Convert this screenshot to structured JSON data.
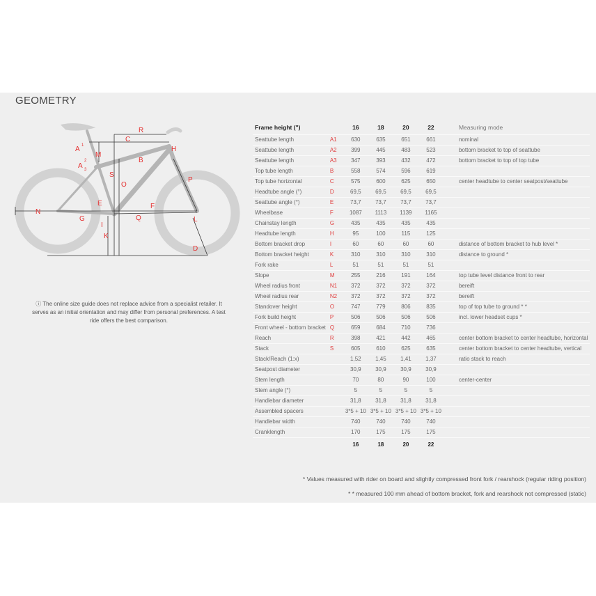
{
  "title": "GEOMETRY",
  "note": "The online size guide does not replace advice from a specialist retailer. It serves as an initial orientation and may differ from personal preferences. A test ride offers the best comparison.",
  "table": {
    "header": {
      "label": "Frame height (\")",
      "sizes": [
        "16",
        "18",
        "20",
        "22"
      ],
      "mode": "Measuring mode"
    },
    "rows": [
      {
        "label": "Seattube length",
        "key": "A1",
        "values": [
          "630",
          "635",
          "651",
          "661"
        ],
        "mode": "nominal"
      },
      {
        "label": "Seattube length",
        "key": "A2",
        "values": [
          "399",
          "445",
          "483",
          "523"
        ],
        "mode": "bottom bracket to top of seattube"
      },
      {
        "label": "Seattube length",
        "key": "A3",
        "values": [
          "347",
          "393",
          "432",
          "472"
        ],
        "mode": "bottom bracket to top of top tube"
      },
      {
        "label": "Top tube length",
        "key": "B",
        "values": [
          "558",
          "574",
          "596",
          "619"
        ],
        "mode": ""
      },
      {
        "label": "Top tube horizontal",
        "key": "C",
        "values": [
          "575",
          "600",
          "625",
          "650"
        ],
        "mode": "center headtube to center seatpost/seattube"
      },
      {
        "label": "Headtube angle (°)",
        "key": "D",
        "values": [
          "69,5",
          "69,5",
          "69,5",
          "69,5"
        ],
        "mode": ""
      },
      {
        "label": "Seattube angle (°)",
        "key": "E",
        "values": [
          "73,7",
          "73,7",
          "73,7",
          "73,7"
        ],
        "mode": ""
      },
      {
        "label": "Wheelbase",
        "key": "F",
        "values": [
          "1087",
          "1113",
          "1139",
          "1165"
        ],
        "mode": ""
      },
      {
        "label": "Chainstay length",
        "key": "G",
        "values": [
          "435",
          "435",
          "435",
          "435"
        ],
        "mode": ""
      },
      {
        "label": "Headtube length",
        "key": "H",
        "values": [
          "95",
          "100",
          "115",
          "125"
        ],
        "mode": ""
      },
      {
        "label": "Bottom bracket drop",
        "key": "I",
        "values": [
          "60",
          "60",
          "60",
          "60"
        ],
        "mode": "distance of bottom bracket to hub level *"
      },
      {
        "label": "Bottom bracket height",
        "key": "K",
        "values": [
          "310",
          "310",
          "310",
          "310"
        ],
        "mode": "distance to ground *"
      },
      {
        "label": "Fork rake",
        "key": "L",
        "values": [
          "51",
          "51",
          "51",
          "51"
        ],
        "mode": ""
      },
      {
        "label": "Slope",
        "key": "M",
        "values": [
          "255",
          "216",
          "191",
          "164"
        ],
        "mode": "top tube level distance front to rear"
      },
      {
        "label": "Wheel radius front",
        "key": "N1",
        "values": [
          "372",
          "372",
          "372",
          "372"
        ],
        "mode": "bereift"
      },
      {
        "label": "Wheel radius rear",
        "key": "N2",
        "values": [
          "372",
          "372",
          "372",
          "372"
        ],
        "mode": "bereift"
      },
      {
        "label": "Standover height",
        "key": "O",
        "values": [
          "747",
          "779",
          "806",
          "835"
        ],
        "mode": "top of top tube to ground * *"
      },
      {
        "label": "Fork build height",
        "key": "P",
        "values": [
          "506",
          "506",
          "506",
          "506"
        ],
        "mode": "incl. lower headset cups *"
      },
      {
        "label": "Front wheel - bottom bracket",
        "key": "Q",
        "values": [
          "659",
          "684",
          "710",
          "736"
        ],
        "mode": ""
      },
      {
        "label": "Reach",
        "key": "R",
        "values": [
          "398",
          "421",
          "442",
          "465"
        ],
        "mode": "center bottom bracket to center headtube, horizontal"
      },
      {
        "label": "Stack",
        "key": "S",
        "values": [
          "605",
          "610",
          "625",
          "635"
        ],
        "mode": "center bottom bracket to center headtube, vertical"
      },
      {
        "label": "Stack/Reach (1:x)",
        "key": "",
        "values": [
          "1,52",
          "1,45",
          "1,41",
          "1,37"
        ],
        "mode": "ratio stack to reach"
      },
      {
        "label": "Seatpost diameter",
        "key": "",
        "values": [
          "30,9",
          "30,9",
          "30,9",
          "30,9"
        ],
        "mode": ""
      },
      {
        "label": "Stem length",
        "key": "",
        "values": [
          "70",
          "80",
          "90",
          "100"
        ],
        "mode": "center-center"
      },
      {
        "label": "Stem angle (°)",
        "key": "",
        "values": [
          "5",
          "5",
          "5",
          "5"
        ],
        "mode": ""
      },
      {
        "label": "Handlebar diameter",
        "key": "",
        "values": [
          "31,8",
          "31,8",
          "31,8",
          "31,8"
        ],
        "mode": ""
      },
      {
        "label": "Assembled spacers",
        "key": "",
        "values": [
          "3*5 + 10",
          "3*5 + 10",
          "3*5 + 10",
          "3*5 + 10"
        ],
        "mode": ""
      },
      {
        "label": "Handlebar width",
        "key": "",
        "values": [
          "740",
          "740",
          "740",
          "740"
        ],
        "mode": ""
      },
      {
        "label": "Cranklength",
        "key": "",
        "values": [
          "170",
          "175",
          "175",
          "175"
        ],
        "mode": ""
      }
    ],
    "footer_sizes": [
      "16",
      "18",
      "20",
      "22"
    ]
  },
  "footnotes": [
    "* Values measured with rider on board and slightly compressed front fork / rearshock (regular riding position)",
    "* * measured 100 mm ahead of bottom bracket, fork and rearshock not compressed (static)"
  ],
  "diagram_labels": [
    "A1",
    "M",
    "A2",
    "A3",
    "C",
    "R",
    "H",
    "B",
    "S",
    "O",
    "P",
    "E",
    "N",
    "G",
    "I",
    "F",
    "Q",
    "L",
    "K",
    "D"
  ],
  "colors": {
    "accent": "#e53030",
    "panel": "#efefef",
    "bike": "#c8c8c8"
  }
}
